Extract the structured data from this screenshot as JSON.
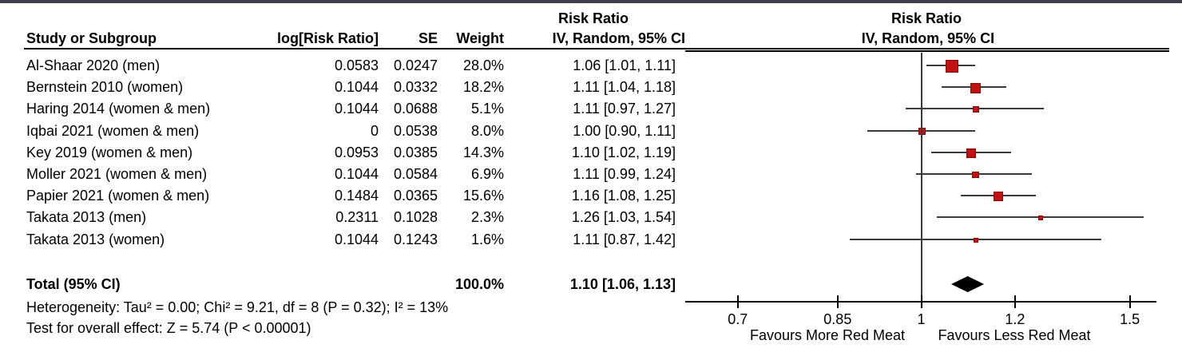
{
  "colors": {
    "marker_fill": "#c11212",
    "marker_border": "#820b0b",
    "ci_line": "#3a3a3a",
    "null_line": "#3a3a3a",
    "axis": "#000000",
    "diamond": "#000000",
    "top_border": "#3e3e4c"
  },
  "header": {
    "study": "Study or Subgroup",
    "log_rr": "log[Risk Ratio]",
    "se": "SE",
    "weight": "Weight",
    "risk_ratio_left": "Risk Ratio",
    "iv_random_left": "IV, Random, 95% CI",
    "risk_ratio_plot": "Risk Ratio",
    "iv_random_plot": "IV, Random, 95% CI"
  },
  "chart_data": {
    "type": "forest",
    "effect_measure": "Risk Ratio",
    "model": "IV, Random, 95% CI",
    "x_scale": "log",
    "axis_range": [
      0.63,
      1.58
    ],
    "axis_ticks": [
      0.7,
      0.85,
      1,
      1.2,
      1.5
    ],
    "axis_tick_labels": [
      "0.7",
      "0.85",
      "1",
      "1.2",
      "1.5"
    ],
    "favours_left": "Favours More Red Meat",
    "favours_right": "Favours Less Red Meat",
    "studies": [
      {
        "name": "Al-Shaar 2020 (men)",
        "log_rr": "0.0583",
        "se": "0.0247",
        "weight": "28.0%",
        "ci_text": "1.06 [1.01, 1.11]",
        "rr": 1.06,
        "lo": 1.01,
        "hi": 1.11,
        "w": 28.0
      },
      {
        "name": "Bernstein 2010 (women)",
        "log_rr": "0.1044",
        "se": "0.0332",
        "weight": "18.2%",
        "ci_text": "1.11 [1.04, 1.18]",
        "rr": 1.11,
        "lo": 1.04,
        "hi": 1.18,
        "w": 18.2
      },
      {
        "name": "Haring 2014 (women & men)",
        "log_rr": "0.1044",
        "se": "0.0688",
        "weight": "5.1%",
        "ci_text": "1.11 [0.97, 1.27]",
        "rr": 1.11,
        "lo": 0.97,
        "hi": 1.27,
        "w": 5.1
      },
      {
        "name": "Iqbai 2021 (women & men)",
        "log_rr": "0",
        "se": "0.0538",
        "weight": "8.0%",
        "ci_text": "1.00 [0.90, 1.11]",
        "rr": 1.0,
        "lo": 0.9,
        "hi": 1.11,
        "w": 8.0
      },
      {
        "name": "Key 2019 (women & men)",
        "log_rr": "0.0953",
        "se": "0.0385",
        "weight": "14.3%",
        "ci_text": "1.10 [1.02, 1.19]",
        "rr": 1.1,
        "lo": 1.02,
        "hi": 1.19,
        "w": 14.3
      },
      {
        "name": "Moller 2021 (women & men)",
        "log_rr": "0.1044",
        "se": "0.0584",
        "weight": "6.9%",
        "ci_text": "1.11 [0.99, 1.24]",
        "rr": 1.11,
        "lo": 0.99,
        "hi": 1.24,
        "w": 6.9
      },
      {
        "name": "Papier 2021 (women & men)",
        "log_rr": "0.1484",
        "se": "0.0365",
        "weight": "15.6%",
        "ci_text": "1.16 [1.08, 1.25]",
        "rr": 1.16,
        "lo": 1.08,
        "hi": 1.25,
        "w": 15.6
      },
      {
        "name": "Takata 2013 (men)",
        "log_rr": "0.2311",
        "se": "0.1028",
        "weight": "2.3%",
        "ci_text": "1.26 [1.03, 1.54]",
        "rr": 1.26,
        "lo": 1.03,
        "hi": 1.54,
        "w": 2.3
      },
      {
        "name": "Takata 2013 (women)",
        "log_rr": "0.1044",
        "se": "0.1243",
        "weight": "1.6%",
        "ci_text": "1.11 [0.87, 1.42]",
        "rr": 1.11,
        "lo": 0.87,
        "hi": 1.42,
        "w": 1.6
      }
    ],
    "total": {
      "label": "Total (95% CI)",
      "weight": "100.0%",
      "ci_text": "1.10 [1.06, 1.13]",
      "rr": 1.1,
      "lo": 1.06,
      "hi": 1.13
    },
    "footnotes": {
      "heterogeneity": "Heterogeneity: Tau² = 0.00; Chi² = 9.21, df = 8 (P = 0.32); I² = 13%",
      "overall_effect": "Test for overall effect: Z = 5.74 (P < 0.00001)"
    }
  }
}
